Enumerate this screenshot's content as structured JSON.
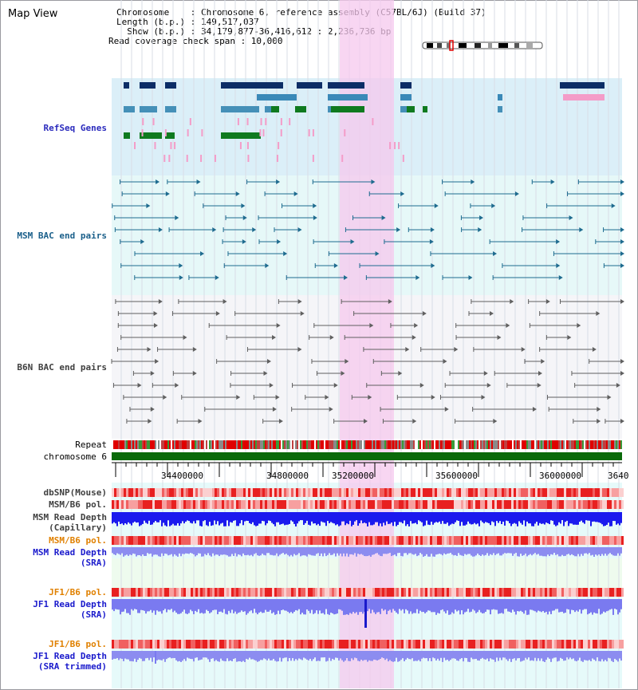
{
  "view": {
    "title": "Map View",
    "info_lines": [
      "Chromosome    : Chromosome 6, reference assembly (C57BL/6J) (Build 37)",
      "Length (b.p.) : 149,517,037",
      "  Show (b.p.) : 34,179,877-36,416,612 : 2,236,736 bp",
      "Read coverage check span : 10,000"
    ]
  },
  "tracks": {
    "refseq": "RefSeq Genes",
    "msm_bac": "MSM BAC end pairs",
    "b6n_bac": "B6N BAC end pairs",
    "repeat": "Repeat",
    "chromosome": "chromosome 6",
    "dbsnp": "dbSNP(Mouse)",
    "msm_b6_pol_1": "MSM/B6 pol.",
    "msm_depth_cap": "MSM Read Depth\n(Capillary)",
    "msm_b6_pol_2": "MSM/B6 pol.",
    "msm_depth_sra": "MSM Read Depth\n(SRA)",
    "jf1_b6_pol_1": "JF1/B6 pol.",
    "jf1_depth_sra": "JF1 Read Depth\n(SRA)",
    "jf1_b6_pol_2": "JF1/B6 pol.",
    "jf1_depth_trim": "JF1 Read Depth\n(SRA trimmed)"
  },
  "axis": {
    "ticks": [
      "34400000",
      "34800000",
      "35200000",
      "35600000",
      "36000000",
      "3640"
    ]
  },
  "colors": {
    "refseq_label": "#2b2bbd",
    "msm_label": "#1a5f8a",
    "b6n_label": "#404040",
    "pol_orange": "#e08000",
    "depth_blue": "#1a1acc",
    "highlight": "#f7cbef",
    "chromosome": "#0a6a0a"
  }
}
